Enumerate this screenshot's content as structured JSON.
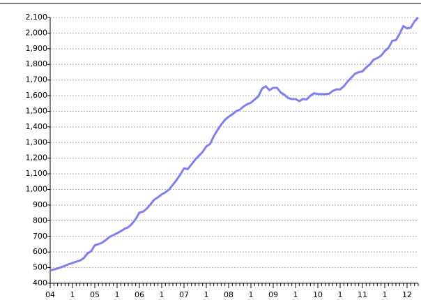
{
  "chart_data": {
    "type": "line",
    "categories": [
      "04",
      null,
      null,
      null,
      null,
      null,
      "1",
      null,
      null,
      null,
      null,
      null,
      "05",
      null,
      null,
      null,
      null,
      null,
      "1",
      null,
      null,
      null,
      null,
      null,
      "06",
      null,
      null,
      null,
      null,
      null,
      "1",
      null,
      null,
      null,
      null,
      null,
      "07",
      null,
      null,
      null,
      null,
      null,
      "1",
      null,
      null,
      null,
      null,
      null,
      "08",
      null,
      null,
      null,
      null,
      null,
      "1",
      null,
      null,
      null,
      null,
      null,
      "09",
      null,
      null,
      null,
      null,
      null,
      "1",
      null,
      null,
      null,
      null,
      null,
      "10",
      null,
      null,
      null,
      null,
      null,
      "1",
      null,
      null,
      null,
      null,
      null,
      "11",
      null,
      null,
      null,
      null,
      null,
      "1",
      null,
      null,
      null,
      null,
      null,
      "12",
      null,
      null,
      null
    ],
    "values": [
      482,
      488,
      495,
      503,
      512,
      522,
      530,
      538,
      545,
      560,
      590,
      605,
      643,
      650,
      660,
      677,
      697,
      708,
      720,
      733,
      748,
      758,
      780,
      810,
      852,
      858,
      878,
      905,
      935,
      950,
      968,
      982,
      1000,
      1030,
      1060,
      1095,
      1135,
      1130,
      1160,
      1190,
      1215,
      1240,
      1275,
      1290,
      1340,
      1380,
      1415,
      1445,
      1465,
      1480,
      1500,
      1510,
      1530,
      1545,
      1555,
      1575,
      1595,
      1645,
      1660,
      1635,
      1650,
      1650,
      1620,
      1605,
      1585,
      1578,
      1578,
      1565,
      1578,
      1575,
      1600,
      1615,
      1610,
      1610,
      1610,
      1612,
      1630,
      1640,
      1640,
      1660,
      1690,
      1715,
      1740,
      1750,
      1755,
      1780,
      1800,
      1830,
      1840,
      1855,
      1885,
      1905,
      1950,
      1955,
      1995,
      2045,
      2030,
      2035,
      2075,
      2100
    ],
    "color": "#7f7ff0",
    "ylim": [
      400,
      2100
    ],
    "yticks": [
      400,
      500,
      600,
      700,
      800,
      900,
      {
        "value": 1000,
        "label": "1,000"
      },
      {
        "value": 1100,
        "label": "1,100"
      },
      {
        "value": 1200,
        "label": "1,200"
      },
      {
        "value": 1300,
        "label": "1,300"
      },
      {
        "value": 1400,
        "label": "1,400"
      },
      {
        "value": 1500,
        "label": "1,500"
      },
      {
        "value": 1600,
        "label": "1,600"
      },
      {
        "value": 1700,
        "label": "1,700"
      },
      {
        "value": 1800,
        "label": "1,800"
      },
      {
        "value": 1900,
        "label": "1,900"
      },
      {
        "value": 2000,
        "label": "2,000"
      },
      {
        "value": 2100,
        "label": "2,100"
      }
    ],
    "grid": true
  }
}
